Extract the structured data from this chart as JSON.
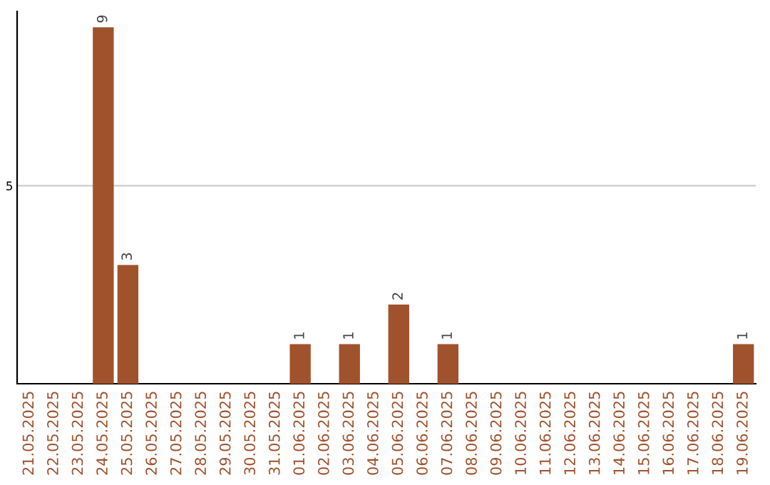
{
  "chart_data": {
    "type": "bar",
    "categories": [
      "21.05.2025",
      "22.05.2025",
      "23.05.2025",
      "24.05.2025",
      "25.05.2025",
      "26.05.2025",
      "27.05.2025",
      "28.05.2025",
      "29.05.2025",
      "30.05.2025",
      "31.05.2025",
      "01.06.2025",
      "02.06.2025",
      "03.06.2025",
      "04.06.2025",
      "05.06.2025",
      "06.06.2025",
      "07.06.2025",
      "08.06.2025",
      "09.06.2025",
      "10.06.2025",
      "11.06.2025",
      "12.06.2025",
      "13.06.2025",
      "14.06.2025",
      "15.06.2025",
      "16.06.2025",
      "17.06.2025",
      "18.06.2025",
      "19.06.2025"
    ],
    "values": [
      0,
      0,
      0,
      9,
      3,
      0,
      0,
      0,
      0,
      0,
      0,
      1,
      0,
      1,
      0,
      2,
      0,
      1,
      0,
      0,
      0,
      0,
      0,
      0,
      0,
      0,
      0,
      0,
      0,
      1
    ],
    "value_labels": [
      null,
      null,
      null,
      "9",
      "3",
      null,
      null,
      null,
      null,
      null,
      null,
      "1",
      null,
      "1",
      null,
      "2",
      null,
      "1",
      null,
      null,
      null,
      null,
      null,
      null,
      null,
      null,
      null,
      null,
      null,
      "1"
    ],
    "color": "#a0522d",
    "ylim": [
      0,
      9.4
    ],
    "yticks": [
      5
    ],
    "grid": "y"
  }
}
